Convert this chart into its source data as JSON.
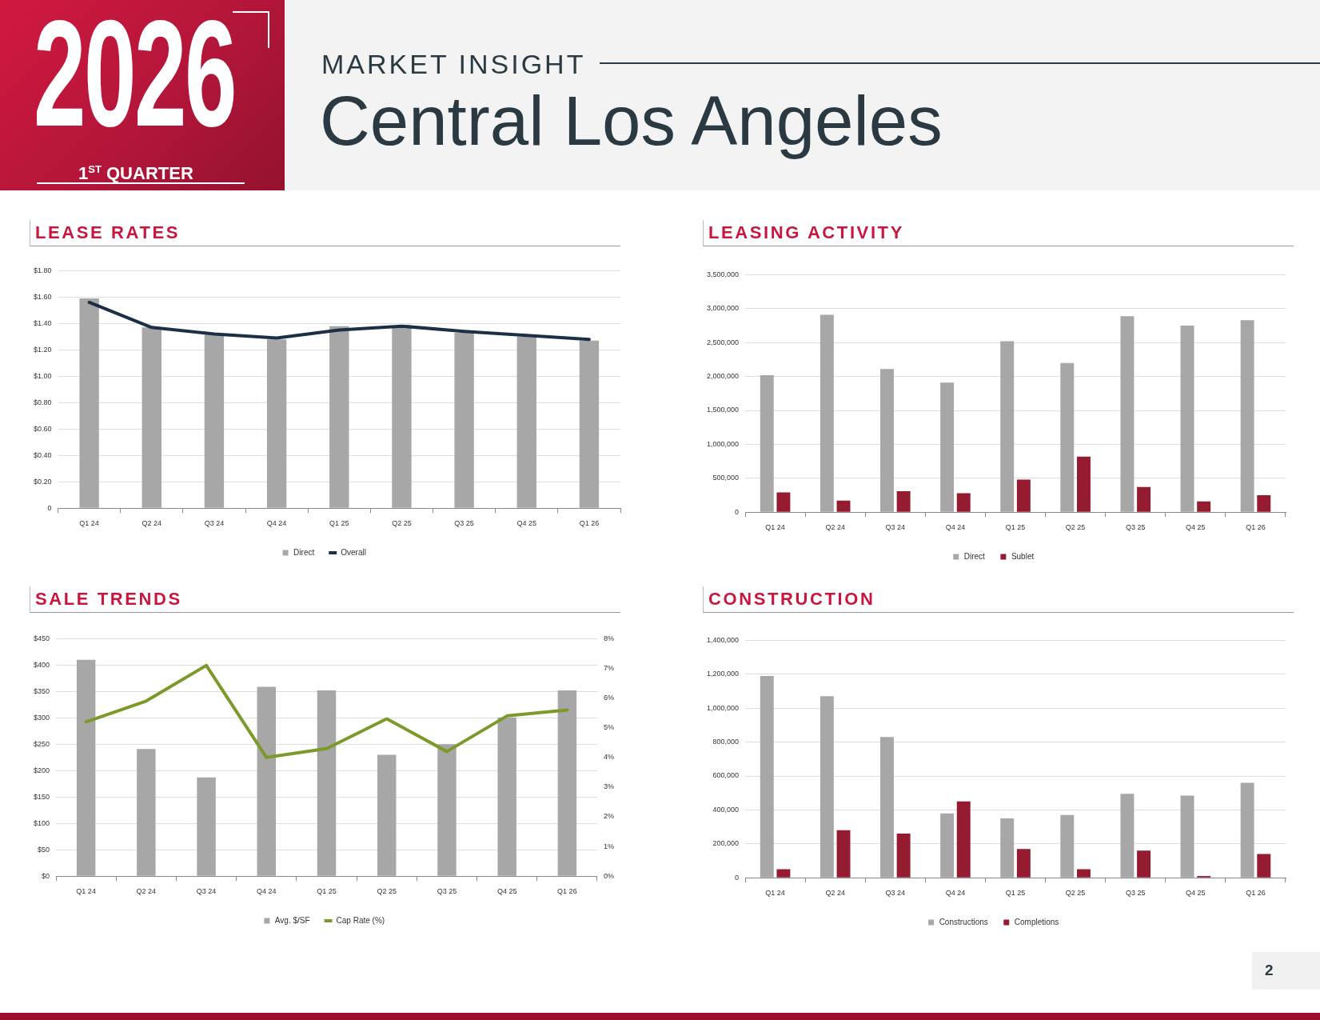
{
  "chart_data": [
    {
      "type": "other",
      "title": "Central Los Angeles",
      "subtitle": "MARKET INSIGHT",
      "annotations": [
        "2026",
        "1$^{ST}$ QUARTER",
        "2"
      ]
    },
    {
      "type": "bar",
      "title": "LEASE RATES",
      "categories": [
        "Q1 24",
        "Q2 24",
        "Q3 24",
        "Q4 24",
        "Q1 25",
        "Q2 25",
        "Q3 25",
        "Q4 25",
        "Q1 26"
      ],
      "series": [
        {
          "name": "Direct",
          "type": "bar",
          "color": "#a7a7a7",
          "values": [
            1.59,
            1.37,
            1.32,
            1.28,
            1.38,
            1.38,
            1.33,
            1.3,
            1.27
          ]
        },
        {
          "name": "Overall",
          "type": "line",
          "color": "#1b3047",
          "values": [
            1.56,
            1.37,
            1.32,
            1.29,
            1.35,
            1.38,
            1.34,
            1.31,
            1.28
          ]
        }
      ],
      "ylim": [
        0,
        1.8
      ],
      "yticks": [
        {
          "value": 0,
          "label": "0"
        },
        {
          "value": 0.2,
          "label": "$0.20"
        },
        {
          "value": 0.4,
          "label": "$0.40"
        },
        {
          "value": 0.6,
          "label": "$0.60"
        },
        {
          "value": 0.8,
          "label": "$0.80"
        },
        {
          "value": 1.0,
          "label": "$1.00"
        },
        {
          "value": 1.2,
          "label": "$1.20"
        },
        {
          "value": 1.4,
          "label": "$1.40"
        },
        {
          "value": 1.6,
          "label": "$1.60"
        },
        {
          "value": 1.8,
          "label": "$1.80"
        }
      ],
      "grid": "y",
      "legend": "bottom"
    },
    {
      "type": "bar",
      "title": "LEASING ACTIVITY",
      "categories": [
        "Q1 24",
        "Q2 24",
        "Q3 24",
        "Q4 24",
        "Q1 25",
        "Q2 25",
        "Q3 25",
        "Q4 25",
        "Q1 26"
      ],
      "series": [
        {
          "name": "Direct",
          "color": "#a7a7a7",
          "values": [
            2020000,
            2910000,
            2110000,
            1910000,
            2520000,
            2200000,
            2890000,
            2750000,
            2830000
          ]
        },
        {
          "name": "Sublet",
          "color": "#951b31",
          "values": [
            290000,
            170000,
            310000,
            280000,
            480000,
            820000,
            370000,
            160000,
            250000
          ]
        }
      ],
      "ylim": [
        0,
        3500000
      ],
      "yticks": [
        {
          "value": 0,
          "label": "0"
        },
        {
          "value": 500000,
          "label": "500,000"
        },
        {
          "value": 1000000,
          "label": "1,000,000"
        },
        {
          "value": 1500000,
          "label": "1,500,000"
        },
        {
          "value": 2000000,
          "label": "2,000,000"
        },
        {
          "value": 2500000,
          "label": "2,500,000"
        },
        {
          "value": 3000000,
          "label": "3,000,000"
        },
        {
          "value": 3500000,
          "label": "3,500,000"
        }
      ],
      "grid": "y",
      "legend": "bottom"
    },
    {
      "type": "bar",
      "title": "SALE TRENDS",
      "categories": [
        "Q1 24",
        "Q2 24",
        "Q3 24",
        "Q4 24",
        "Q1 25",
        "Q2 25",
        "Q3 25",
        "Q4 25",
        "Q1 26"
      ],
      "series": [
        {
          "name": "Avg. $/SF",
          "type": "bar",
          "color": "#a7a7a7",
          "values": [
            410,
            241,
            187,
            359,
            352,
            230,
            250,
            301,
            352
          ]
        },
        {
          "name": "Cap Rate (%)",
          "type": "line",
          "axis": "y2",
          "color": "#7b9a2a",
          "values": [
            5.2,
            5.9,
            7.1,
            4.0,
            4.3,
            5.3,
            4.2,
            5.4,
            5.6
          ]
        }
      ],
      "ylim": [
        0,
        450
      ],
      "yticks": [
        {
          "value": 0,
          "label": "$0"
        },
        {
          "value": 50,
          "label": "$50"
        },
        {
          "value": 100,
          "label": "$100"
        },
        {
          "value": 150,
          "label": "$150"
        },
        {
          "value": 200,
          "label": "$200"
        },
        {
          "value": 250,
          "label": "$250"
        },
        {
          "value": 300,
          "label": "$300"
        },
        {
          "value": 350,
          "label": "$350"
        },
        {
          "value": 400,
          "label": "$400"
        },
        {
          "value": 450,
          "label": "$450"
        }
      ],
      "y2lim": [
        0,
        8
      ],
      "y2ticks": [
        {
          "value": 0,
          "label": "0%"
        },
        {
          "value": 1,
          "label": "1%"
        },
        {
          "value": 2,
          "label": "2%"
        },
        {
          "value": 3,
          "label": "3%"
        },
        {
          "value": 4,
          "label": "4%"
        },
        {
          "value": 5,
          "label": "5%"
        },
        {
          "value": 6,
          "label": "6%"
        },
        {
          "value": 7,
          "label": "7%"
        },
        {
          "value": 8,
          "label": "8%"
        }
      ],
      "grid": "y",
      "legend": "bottom"
    },
    {
      "type": "bar",
      "title": "CONSTRUCTION",
      "categories": [
        "Q1 24",
        "Q2 24",
        "Q3 24",
        "Q4 24",
        "Q1 25",
        "Q2 25",
        "Q3 25",
        "Q4 25",
        "Q1 26"
      ],
      "series": [
        {
          "name": "Constructions",
          "color": "#a7a7a7",
          "values": [
            1190000,
            1070000,
            830000,
            380000,
            350000,
            370000,
            495000,
            485000,
            560000
          ]
        },
        {
          "name": "Completions",
          "color": "#951b31",
          "values": [
            50000,
            280000,
            260000,
            450000,
            170000,
            50000,
            160000,
            10000,
            140000
          ]
        }
      ],
      "ylim": [
        0,
        1400000
      ],
      "yticks": [
        {
          "value": 0,
          "label": "0"
        },
        {
          "value": 200000,
          "label": "200,000"
        },
        {
          "value": 400000,
          "label": "400,000"
        },
        {
          "value": 600000,
          "label": "600,000"
        },
        {
          "value": 800000,
          "label": "800,000"
        },
        {
          "value": 1000000,
          "label": "1,000,000"
        },
        {
          "value": 1200000,
          "label": "1,200,000"
        },
        {
          "value": 1400000,
          "label": "1,400,000"
        }
      ],
      "grid": "y",
      "legend": "bottom"
    }
  ]
}
